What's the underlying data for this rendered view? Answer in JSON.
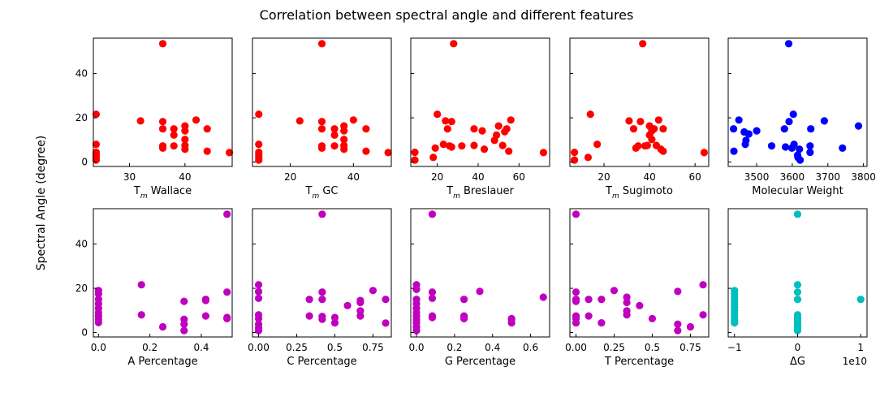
{
  "figure": {
    "title": "Correlation between spectral angle and different features",
    "shared_ylabel": "Spectral Angle (degree)"
  },
  "colors": {
    "red": "#ff0000",
    "blue": "#0000ff",
    "magenta": "#bf00bf",
    "cyan": "#00bfbf"
  },
  "chart_data": [
    {
      "type": "scatter",
      "id": "tm-wallace",
      "xlabel_main": "T",
      "xlabel_sub": "m",
      "xlabel_rest": " Wallace",
      "xlim": [
        23.5,
        48.5
      ],
      "ylim": [
        -2,
        56
      ],
      "xticks": [
        30,
        40
      ],
      "yticks": [
        0,
        20,
        40
      ],
      "show_ytick_labels": true,
      "color": "#ff0000",
      "points": [
        [
          24,
          21.6
        ],
        [
          24,
          8
        ],
        [
          24,
          4.4
        ],
        [
          24,
          3.1
        ],
        [
          24,
          2.1
        ],
        [
          24,
          0.9
        ],
        [
          32,
          18.6
        ],
        [
          36,
          53.5
        ],
        [
          36,
          18.3
        ],
        [
          36,
          15
        ],
        [
          36,
          7.3
        ],
        [
          36,
          6.3
        ],
        [
          38,
          15
        ],
        [
          38,
          12.2
        ],
        [
          38,
          7.3
        ],
        [
          40,
          16.3
        ],
        [
          40,
          14.1
        ],
        [
          40,
          10.2
        ],
        [
          40,
          7.5
        ],
        [
          40,
          5.8
        ],
        [
          42,
          19
        ],
        [
          44,
          15
        ],
        [
          44,
          4.9
        ],
        [
          48,
          4.3
        ]
      ]
    },
    {
      "type": "scatter",
      "id": "tm-gc",
      "xlabel_main": "T",
      "xlabel_sub": "m",
      "xlabel_rest": " GC",
      "xlim": [
        8,
        52
      ],
      "ylim": [
        -2,
        56
      ],
      "xticks": [
        20,
        40
      ],
      "yticks": [
        0,
        20,
        40
      ],
      "show_ytick_labels": false,
      "color": "#ff0000",
      "points": [
        [
          10,
          21.6
        ],
        [
          10,
          8
        ],
        [
          10,
          4.4
        ],
        [
          10,
          3.1
        ],
        [
          10,
          2.1
        ],
        [
          10,
          0.9
        ],
        [
          23,
          18.6
        ],
        [
          30,
          53.5
        ],
        [
          30,
          18.3
        ],
        [
          30,
          15
        ],
        [
          30,
          7.3
        ],
        [
          30,
          6.3
        ],
        [
          34,
          15
        ],
        [
          34,
          12.2
        ],
        [
          34,
          7.3
        ],
        [
          37,
          16.3
        ],
        [
          37,
          14.1
        ],
        [
          37,
          10.2
        ],
        [
          37,
          7.5
        ],
        [
          37,
          5.8
        ],
        [
          40,
          19
        ],
        [
          44,
          15
        ],
        [
          44,
          4.9
        ],
        [
          51,
          4.3
        ]
      ]
    },
    {
      "type": "scatter",
      "id": "tm-breslauer",
      "xlabel_main": "T",
      "xlabel_sub": "m",
      "xlabel_rest": " Breslauer",
      "xlim": [
        7,
        75
      ],
      "ylim": [
        -2,
        56
      ],
      "xticks": [
        20,
        40,
        60
      ],
      "yticks": [
        0,
        20,
        40
      ],
      "show_ytick_labels": false,
      "color": "#ff0000",
      "points": [
        [
          9,
          4.4
        ],
        [
          9,
          0.9
        ],
        [
          18,
          2.1
        ],
        [
          19,
          6.3
        ],
        [
          20,
          21.6
        ],
        [
          23,
          8
        ],
        [
          24,
          18.6
        ],
        [
          25,
          15
        ],
        [
          26,
          7.3
        ],
        [
          27,
          6.8
        ],
        [
          27,
          18.3
        ],
        [
          28,
          53.5
        ],
        [
          32,
          7.3
        ],
        [
          38,
          15
        ],
        [
          38,
          7.5
        ],
        [
          42,
          14.1
        ],
        [
          43,
          5.8
        ],
        [
          48,
          9.8
        ],
        [
          49,
          12.2
        ],
        [
          50,
          16.3
        ],
        [
          52,
          7.5
        ],
        [
          53,
          13.7
        ],
        [
          54,
          15
        ],
        [
          55,
          4.9
        ],
        [
          56,
          19
        ],
        [
          72,
          4.3
        ]
      ]
    },
    {
      "type": "scatter",
      "id": "tm-sugimoto",
      "xlabel_main": "T",
      "xlabel_sub": "m",
      "xlabel_rest": " Sugimoto",
      "xlim": [
        5,
        66
      ],
      "ylim": [
        -2,
        56
      ],
      "xticks": [
        20,
        40,
        60
      ],
      "yticks": [
        0,
        20,
        40
      ],
      "show_ytick_labels": false,
      "color": "#ff0000",
      "points": [
        [
          7,
          4.4
        ],
        [
          7,
          0.9
        ],
        [
          13,
          2.1
        ],
        [
          14,
          21.6
        ],
        [
          17,
          8
        ],
        [
          31,
          18.6
        ],
        [
          33,
          15
        ],
        [
          34,
          6.3
        ],
        [
          35,
          7.3
        ],
        [
          36,
          18.3
        ],
        [
          37,
          53.5
        ],
        [
          38,
          7.3
        ],
        [
          39,
          7.5
        ],
        [
          40,
          12.2
        ],
        [
          40,
          16.3
        ],
        [
          41,
          10.2
        ],
        [
          41,
          14.1
        ],
        [
          42,
          15
        ],
        [
          43,
          7.5
        ],
        [
          44,
          19
        ],
        [
          45,
          5.8
        ],
        [
          46,
          4.9
        ],
        [
          46,
          15
        ],
        [
          64,
          4.3
        ]
      ]
    },
    {
      "type": "scatter",
      "id": "molecular-weight",
      "xlabel_main": "Molecular Weight",
      "xlabel_sub": "",
      "xlabel_rest": "",
      "xlim": [
        3420,
        3810
      ],
      "ylim": [
        -2,
        56
      ],
      "xticks": [
        3500,
        3600,
        3700,
        3800
      ],
      "yticks": [
        0,
        20,
        40
      ],
      "show_ytick_labels": false,
      "color": "#0000ff",
      "points": [
        [
          3435,
          15
        ],
        [
          3436,
          4.9
        ],
        [
          3450,
          19
        ],
        [
          3465,
          13.6
        ],
        [
          3468,
          8
        ],
        [
          3470,
          9.8
        ],
        [
          3478,
          12.7
        ],
        [
          3500,
          14.1
        ],
        [
          3542,
          7.3
        ],
        [
          3578,
          15
        ],
        [
          3581,
          6.8
        ],
        [
          3590,
          53.5
        ],
        [
          3591,
          18.3
        ],
        [
          3599,
          6.3
        ],
        [
          3603,
          21.6
        ],
        [
          3605,
          8
        ],
        [
          3615,
          3.1
        ],
        [
          3616,
          2.1
        ],
        [
          3620,
          5.8
        ],
        [
          3622,
          0.9
        ],
        [
          3650,
          4.4
        ],
        [
          3650,
          7.3
        ],
        [
          3652,
          15
        ],
        [
          3690,
          18.6
        ],
        [
          3741,
          6.3
        ],
        [
          3786,
          16.3
        ]
      ]
    },
    {
      "type": "scatter",
      "id": "a-percentage",
      "xlabel_main": "A Percentage",
      "xlabel_sub": "",
      "xlabel_rest": "",
      "xlim": [
        -0.02,
        0.52
      ],
      "ylim": [
        -2,
        56
      ],
      "xticks": [
        0.0,
        0.2,
        0.4
      ],
      "yticks": [
        0,
        20,
        40
      ],
      "show_ytick_labels": true,
      "color": "#bf00bf",
      "points": [
        [
          0,
          19
        ],
        [
          0,
          17.5
        ],
        [
          0,
          15
        ],
        [
          0,
          13
        ],
        [
          0,
          11
        ],
        [
          0,
          9
        ],
        [
          0,
          7.5
        ],
        [
          0,
          6
        ],
        [
          0,
          4.5
        ],
        [
          0.167,
          21.6
        ],
        [
          0.167,
          8
        ],
        [
          0.25,
          2.6
        ],
        [
          0.333,
          14.1
        ],
        [
          0.333,
          6
        ],
        [
          0.333,
          3.8
        ],
        [
          0.333,
          0.9
        ],
        [
          0.417,
          15
        ],
        [
          0.417,
          14.5
        ],
        [
          0.417,
          7.5
        ],
        [
          0.5,
          53.5
        ],
        [
          0.5,
          18.3
        ],
        [
          0.5,
          6.8
        ],
        [
          0.5,
          6.3
        ]
      ]
    },
    {
      "type": "scatter",
      "id": "c-percentage",
      "xlabel_main": "C Percentage",
      "xlabel_sub": "",
      "xlabel_rest": "",
      "xlim": [
        -0.04,
        0.87
      ],
      "ylim": [
        -2,
        56
      ],
      "xticks": [
        0.0,
        0.25,
        0.5,
        0.75
      ],
      "yticks": [
        0,
        20,
        40
      ],
      "show_ytick_labels": false,
      "color": "#bf00bf",
      "points": [
        [
          0,
          21.6
        ],
        [
          0,
          18.5
        ],
        [
          0,
          15.5
        ],
        [
          0,
          8
        ],
        [
          0,
          6.3
        ],
        [
          0,
          3.8
        ],
        [
          0,
          2.1
        ],
        [
          0,
          0.9
        ],
        [
          0.333,
          15
        ],
        [
          0.333,
          7.5
        ],
        [
          0.417,
          53.5
        ],
        [
          0.417,
          18.3
        ],
        [
          0.417,
          15
        ],
        [
          0.417,
          7.3
        ],
        [
          0.417,
          6
        ],
        [
          0.5,
          6.8
        ],
        [
          0.5,
          4.4
        ],
        [
          0.583,
          12.2
        ],
        [
          0.667,
          14.5
        ],
        [
          0.667,
          13.6
        ],
        [
          0.667,
          9.8
        ],
        [
          0.667,
          7.5
        ],
        [
          0.75,
          19
        ],
        [
          0.833,
          15
        ],
        [
          0.833,
          4.3
        ]
      ]
    },
    {
      "type": "scatter",
      "id": "g-percentage",
      "xlabel_main": "G Percentage",
      "xlabel_sub": "",
      "xlabel_rest": "",
      "xlim": [
        -0.03,
        0.7
      ],
      "ylim": [
        -2,
        56
      ],
      "xticks": [
        0.0,
        0.2,
        0.4,
        0.6
      ],
      "yticks": [
        0,
        20,
        40
      ],
      "show_ytick_labels": false,
      "color": "#bf00bf",
      "points": [
        [
          0,
          21.6
        ],
        [
          0,
          19.5
        ],
        [
          0,
          15
        ],
        [
          0,
          13
        ],
        [
          0,
          11
        ],
        [
          0,
          9
        ],
        [
          0,
          7.3
        ],
        [
          0,
          5.8
        ],
        [
          0,
          4.4
        ],
        [
          0,
          2.6
        ],
        [
          0,
          0.9
        ],
        [
          0.083,
          53.5
        ],
        [
          0.083,
          18.3
        ],
        [
          0.083,
          15.5
        ],
        [
          0.083,
          7.5
        ],
        [
          0.083,
          6.8
        ],
        [
          0.25,
          15
        ],
        [
          0.25,
          7.5
        ],
        [
          0.25,
          6.3
        ],
        [
          0.333,
          18.6
        ],
        [
          0.5,
          6.3
        ],
        [
          0.5,
          5.8
        ],
        [
          0.5,
          4.4
        ],
        [
          0.667,
          16
        ]
      ]
    },
    {
      "type": "scatter",
      "id": "t-percentage",
      "xlabel_main": "T Percentage",
      "xlabel_sub": "",
      "xlabel_rest": "",
      "xlim": [
        -0.04,
        0.87
      ],
      "ylim": [
        -2,
        56
      ],
      "xticks": [
        0.0,
        0.25,
        0.5,
        0.75
      ],
      "yticks": [
        0,
        20,
        40
      ],
      "show_ytick_labels": false,
      "color": "#bf00bf",
      "points": [
        [
          0,
          53.5
        ],
        [
          0,
          18.3
        ],
        [
          0,
          15
        ],
        [
          0,
          14.1
        ],
        [
          0,
          7.5
        ],
        [
          0,
          6.3
        ],
        [
          0,
          4.4
        ],
        [
          0.083,
          15
        ],
        [
          0.083,
          7.5
        ],
        [
          0.167,
          15
        ],
        [
          0.167,
          4.4
        ],
        [
          0.25,
          19
        ],
        [
          0.333,
          16
        ],
        [
          0.333,
          13.6
        ],
        [
          0.333,
          9.8
        ],
        [
          0.333,
          8
        ],
        [
          0.417,
          12.2
        ],
        [
          0.5,
          6.3
        ],
        [
          0.667,
          18.6
        ],
        [
          0.667,
          3.8
        ],
        [
          0.667,
          0.9
        ],
        [
          0.75,
          2.6
        ],
        [
          0.833,
          21.6
        ],
        [
          0.833,
          8
        ]
      ]
    },
    {
      "type": "scatter",
      "id": "delta-g",
      "xlabel_main": "ΔG",
      "xlabel_sub": "",
      "xlabel_rest": "",
      "x_offset_text": "1e10",
      "xlim": [
        -1.1,
        1.1
      ],
      "ylim": [
        -2,
        56
      ],
      "xticks": [
        -1,
        0,
        1
      ],
      "yticks": [
        0,
        20,
        40
      ],
      "show_ytick_labels": false,
      "color": "#00bfbf",
      "points": [
        [
          -1,
          19
        ],
        [
          -1,
          17.5
        ],
        [
          -1,
          16
        ],
        [
          -1,
          14.5
        ],
        [
          -1,
          13
        ],
        [
          -1,
          11.5
        ],
        [
          -1,
          10
        ],
        [
          -1,
          8.5
        ],
        [
          -1,
          7
        ],
        [
          -1,
          5.5
        ],
        [
          -1,
          4.4
        ],
        [
          0,
          53.5
        ],
        [
          0,
          21.6
        ],
        [
          0,
          18.3
        ],
        [
          0,
          15
        ],
        [
          0,
          8
        ],
        [
          0,
          7
        ],
        [
          0,
          6
        ],
        [
          0,
          5
        ],
        [
          0,
          4
        ],
        [
          0,
          3
        ],
        [
          0,
          2
        ],
        [
          0,
          0.9
        ],
        [
          1,
          15
        ]
      ]
    }
  ]
}
